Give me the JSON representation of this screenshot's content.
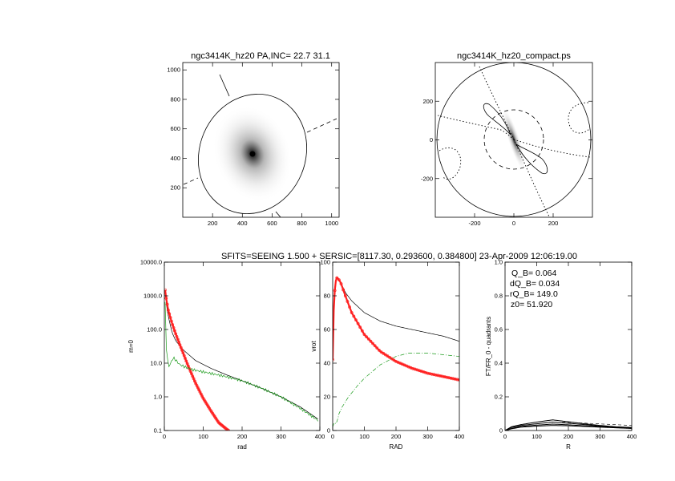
{
  "header": {
    "text": "SFITS=SEEING 1.500 + SERSIC=[8117.30, 0.293600, 0.384800]  23-Apr-2009 12:06:19.00"
  },
  "colors": {
    "red": "#ff2020",
    "green": "#1a9a1a",
    "black": "#000000"
  },
  "chart_data": [
    {
      "type": "heatmap",
      "title": "ngc3414K_hz20 PA,INC= 22.7 31.1",
      "xlim": [
        0,
        1050
      ],
      "ylim": [
        0,
        1050
      ],
      "xticks": [
        200,
        400,
        600,
        800,
        1000
      ],
      "yticks": [
        200,
        400,
        600,
        800,
        1000
      ],
      "center": [
        470,
        410
      ],
      "ellipse": {
        "semi_major": 380,
        "semi_minor": 318,
        "pa_deg": 22.7
      }
    },
    {
      "type": "scatter",
      "title": "ngc3414K_hz20_compact.ps",
      "xlim": [
        -400,
        400
      ],
      "ylim": [
        -400,
        400
      ],
      "xticks": [
        -200,
        0,
        200
      ],
      "yticks": [
        -200,
        0,
        200
      ],
      "outer_radius": 395,
      "inner_radius": 150
    },
    {
      "type": "line",
      "xlabel": "rad",
      "ylabel": "m=0",
      "xlim": [
        0,
        400
      ],
      "ylim": [
        0.1,
        10000
      ],
      "yscale": "log",
      "xticks": [
        0,
        100,
        200,
        300,
        400
      ],
      "yticks": [
        0.1,
        1.0,
        10.0,
        100.0,
        1000.0,
        10000.0
      ],
      "ytick_labels": [
        "0.1",
        "1.0",
        "10.0",
        "100.0",
        "1000.0",
        "10000.0"
      ],
      "series": [
        {
          "color": "#000000",
          "x": [
            2,
            5,
            10,
            20,
            30,
            50,
            80,
            120,
            160,
            200,
            250,
            300,
            350,
            395
          ],
          "y": [
            1500,
            600,
            250,
            80,
            45,
            24,
            12,
            7,
            4.5,
            3.0,
            1.8,
            1.0,
            0.5,
            0.22
          ]
        },
        {
          "color": "#ff2020",
          "x": [
            2,
            5,
            10,
            20,
            30,
            40,
            60,
            80,
            100,
            120,
            140,
            160,
            165
          ],
          "y": [
            1500,
            800,
            380,
            150,
            70,
            35,
            9,
            2.6,
            0.9,
            0.38,
            0.17,
            0.11,
            0.1
          ]
        },
        {
          "color": "#1a9a1a",
          "x": [
            2,
            5,
            10,
            15,
            20,
            25,
            30,
            40,
            50,
            70,
            100,
            150,
            200,
            250,
            300,
            350,
            395
          ],
          "y": [
            600,
            30,
            8,
            9,
            13,
            14,
            12,
            9,
            8,
            6.5,
            5.5,
            4.2,
            3.0,
            1.8,
            1.0,
            0.45,
            0.2
          ]
        }
      ]
    },
    {
      "type": "line",
      "xlabel": "RAD",
      "ylabel": "vrot",
      "xlim": [
        0,
        400
      ],
      "ylim": [
        0,
        100
      ],
      "xticks": [
        0,
        100,
        200,
        300,
        400
      ],
      "yticks": [
        0,
        20,
        40,
        60,
        80,
        100
      ],
      "series": [
        {
          "color": "#000000",
          "x": [
            0,
            3,
            6,
            10,
            14,
            18,
            25,
            40,
            60,
            100,
            150,
            200,
            250,
            300,
            350,
            400
          ],
          "y": [
            42,
            70,
            82,
            89,
            91,
            90,
            88,
            82,
            77,
            70,
            65,
            62,
            60,
            58,
            56,
            53
          ]
        },
        {
          "color": "#ff2020",
          "x": [
            0,
            3,
            6,
            10,
            14,
            18,
            25,
            40,
            60,
            100,
            150,
            200,
            250,
            300,
            350,
            400
          ],
          "y": [
            42,
            70,
            82,
            89,
            91,
            90,
            88,
            80,
            70,
            57,
            47,
            41,
            37,
            34,
            32,
            30
          ]
        },
        {
          "color": "#1a9a1a",
          "x": [
            0,
            5,
            10,
            15,
            20,
            30,
            50,
            80,
            100,
            150,
            200,
            240,
            300,
            350,
            400
          ],
          "y": [
            2,
            5,
            4,
            6,
            10,
            14,
            20,
            27,
            31,
            39,
            44,
            46,
            46,
            45,
            44
          ]
        }
      ]
    },
    {
      "type": "line",
      "xlabel": "R",
      "ylabel": "FT/FR_0 - quadrants",
      "xlim": [
        0,
        400
      ],
      "ylim": [
        0,
        1.0
      ],
      "xticks": [
        0,
        100,
        200,
        300,
        400
      ],
      "yticks": [
        0,
        0.2,
        0.4,
        0.6,
        0.8,
        1.0
      ],
      "annotations": [
        "Q_B=  0.064",
        "dQ_B=  0.034",
        "rQ_B=  149.0",
        "z0= 51.920"
      ],
      "series": [
        {
          "color": "#000000",
          "x": [
            0,
            20,
            50,
            100,
            150,
            200,
            250,
            300,
            350,
            400
          ],
          "y": [
            0,
            0.022,
            0.035,
            0.05,
            0.063,
            0.052,
            0.04,
            0.03,
            0.022,
            0.018
          ]
        },
        {
          "color": "#000000",
          "x": [
            0,
            20,
            50,
            100,
            150,
            200,
            250,
            300,
            350,
            400
          ],
          "y": [
            0,
            0.018,
            0.03,
            0.04,
            0.05,
            0.043,
            0.035,
            0.026,
            0.02,
            0.015
          ]
        },
        {
          "color": "#000000",
          "x": [
            0,
            20,
            50,
            100,
            150,
            200,
            250,
            300,
            350,
            400
          ],
          "y": [
            0,
            0.012,
            0.024,
            0.032,
            0.038,
            0.034,
            0.028,
            0.022,
            0.017,
            0.013
          ]
        },
        {
          "color": "#000000",
          "x": [
            0,
            20,
            50,
            100,
            150,
            200,
            250,
            300,
            350,
            400
          ],
          "y": [
            0,
            0.01,
            0.02,
            0.026,
            0.03,
            0.028,
            0.024,
            0.02,
            0.016,
            0.012
          ]
        }
      ]
    }
  ]
}
